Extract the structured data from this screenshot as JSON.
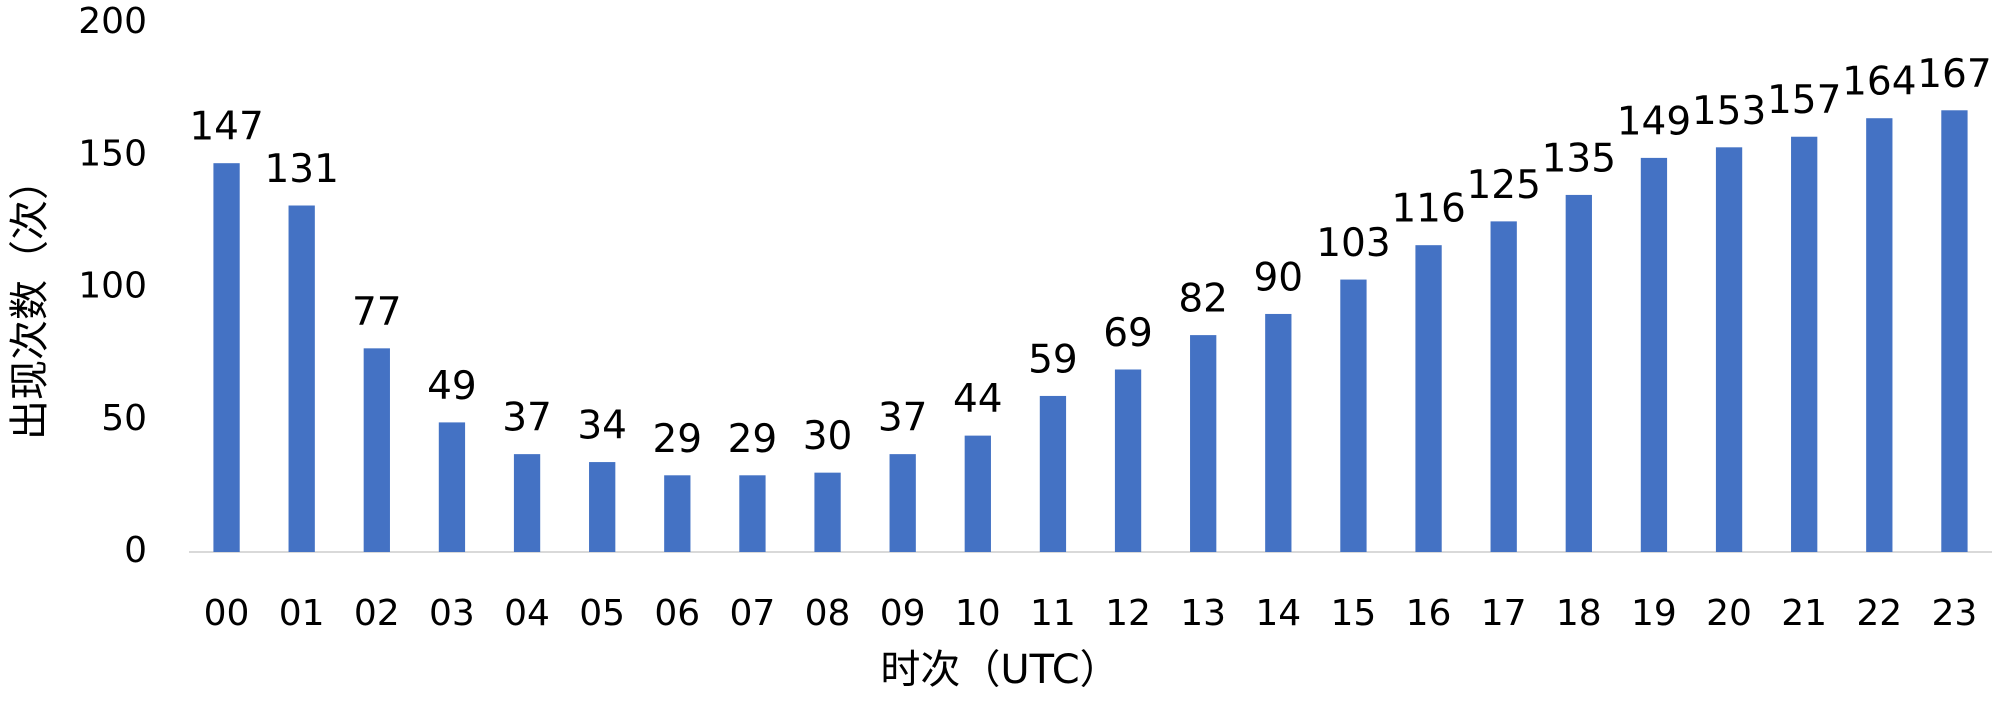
{
  "chart_data": {
    "type": "bar",
    "x_label": "时次（UTC）",
    "y_label": "出现次数（次）",
    "categories": [
      "00",
      "01",
      "02",
      "03",
      "04",
      "05",
      "06",
      "07",
      "08",
      "09",
      "10",
      "11",
      "12",
      "13",
      "14",
      "15",
      "16",
      "17",
      "18",
      "19",
      "20",
      "21",
      "22",
      "23"
    ],
    "values": [
      147,
      131,
      77,
      49,
      37,
      34,
      29,
      29,
      30,
      37,
      44,
      59,
      69,
      82,
      90,
      103,
      116,
      125,
      135,
      149,
      153,
      157,
      164,
      167
    ],
    "color": "#4472c4",
    "ylim": [
      0,
      200
    ],
    "yticks": [
      0,
      50,
      100,
      150,
      200
    ],
    "grid": false
  }
}
